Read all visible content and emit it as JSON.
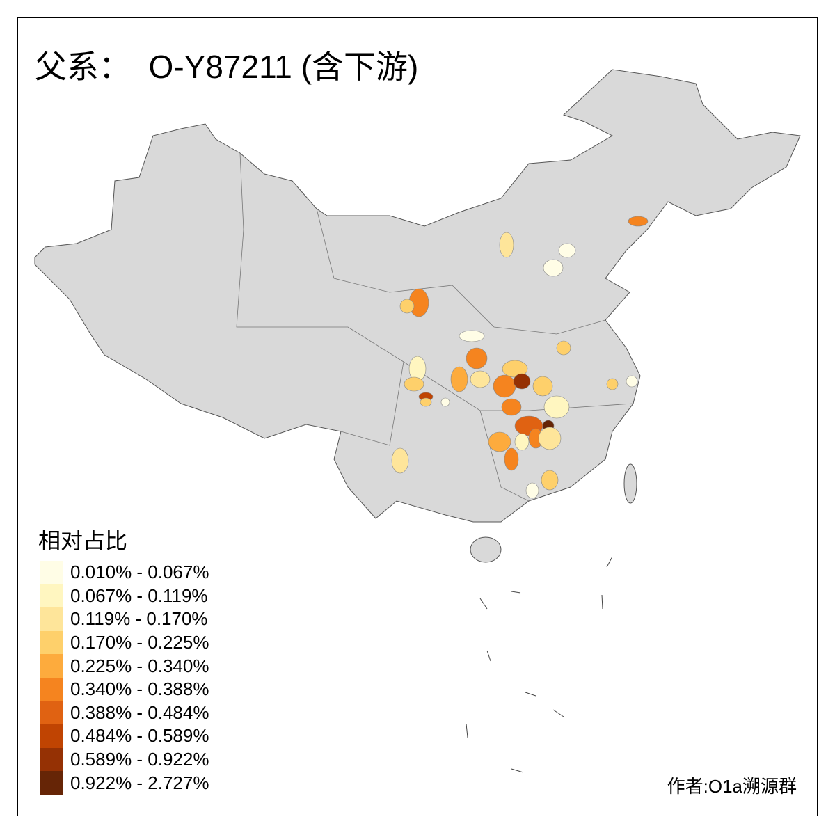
{
  "title": "父系：  O-Y87211 (含下游)",
  "legend": {
    "title": "相对占比",
    "bins": [
      {
        "label": "0.010% - 0.067%",
        "color": "#fffde6"
      },
      {
        "label": "0.067% - 0.119%",
        "color": "#fff6c0"
      },
      {
        "label": "0.119% - 0.170%",
        "color": "#fee59a"
      },
      {
        "label": "0.170% - 0.225%",
        "color": "#fed06b"
      },
      {
        "label": "0.225% - 0.340%",
        "color": "#fdab3d"
      },
      {
        "label": "0.340% - 0.388%",
        "color": "#f5841f"
      },
      {
        "label": "0.388% - 0.484%",
        "color": "#e06212"
      },
      {
        "label": "0.484% - 0.589%",
        "color": "#c04402"
      },
      {
        "label": "0.589% - 0.922%",
        "color": "#953104"
      },
      {
        "label": "0.922% - 2.727%",
        "color": "#662506"
      }
    ]
  },
  "author": "作者:O1a溯源群",
  "colors": {
    "base_land": "#d9d9d9",
    "border": "#555555"
  }
}
